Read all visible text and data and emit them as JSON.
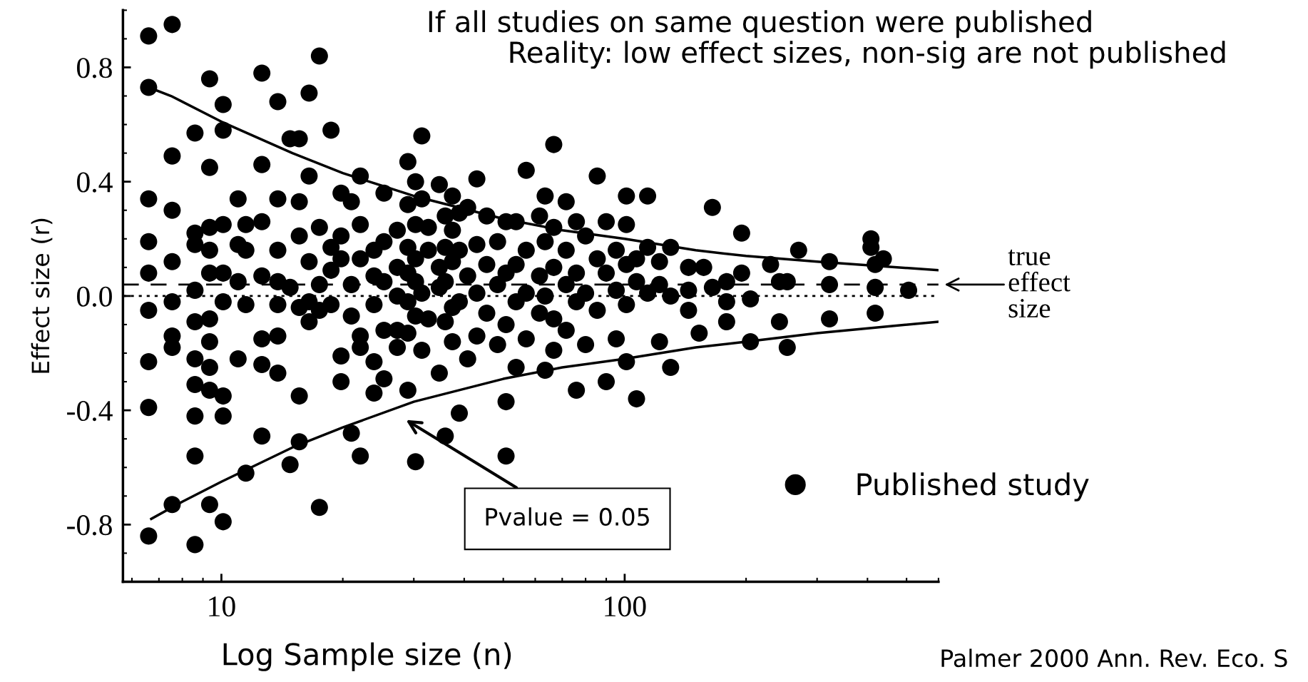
{
  "chart_data": {
    "type": "scatter",
    "title": "If all studies on same question were published",
    "subtitle": "Reality: low effect sizes, non-sig are not published",
    "xlabel": "Log Sample size (n)",
    "ylabel": "Effect size (r)",
    "log": "x",
    "xlim": [
      5.7,
      600
    ],
    "ylim": [
      -1.0,
      1.0
    ],
    "xticks": [
      10,
      100
    ],
    "yticks": [
      {
        "value": -0.8,
        "label": "-0.8"
      },
      {
        "value": -0.4,
        "label": "-0.4"
      },
      {
        "value": 0.0,
        "label": "0.0"
      },
      {
        "value": 0.4,
        "label": "0.4"
      },
      {
        "value": 0.8,
        "label": "0.8"
      }
    ],
    "grid": false,
    "legend": "lower right",
    "marker": "circle",
    "series": [
      {
        "name": "Published study",
        "color": "#000000",
        "x": [
          6.6,
          6.6,
          6.6,
          6.6,
          6.6,
          6.6,
          6.6,
          6.6,
          6.6,
          7.55,
          7.55,
          7.55,
          7.55,
          7.55,
          7.55,
          7.55,
          7.55,
          8.6,
          8.6,
          8.6,
          8.6,
          8.6,
          8.6,
          8.6,
          8.6,
          8.6,
          8.6,
          9.35,
          9.35,
          9.35,
          9.35,
          9.35,
          9.35,
          9.35,
          9.35,
          9.35,
          9.35,
          10.1,
          10.1,
          10.1,
          10.1,
          10.1,
          10.1,
          10.1,
          10.1,
          11.0,
          11.0,
          11.0,
          11.0,
          11.5,
          11.5,
          11.5,
          11.5,
          12.6,
          12.6,
          12.6,
          12.6,
          12.6,
          12.6,
          12.6,
          13.8,
          13.8,
          13.8,
          13.8,
          13.8,
          13.8,
          13.8,
          14.8,
          14.8,
          14.8,
          15.6,
          15.6,
          15.6,
          15.6,
          15.6,
          15.6,
          16.5,
          16.5,
          16.5,
          16.5,
          16.5,
          17.5,
          17.5,
          17.5,
          17.5,
          17.5,
          18.7,
          18.7,
          18.7,
          18.7,
          19.8,
          19.8,
          19.8,
          19.8,
          19.8,
          21.0,
          21.0,
          21.0,
          21.0,
          22.1,
          22.1,
          22.1,
          22.1,
          22.1,
          22.1,
          23.9,
          23.9,
          23.9,
          23.9,
          23.9,
          25.3,
          25.3,
          25.3,
          25.3,
          25.3,
          27.3,
          27.3,
          27.3,
          27.3,
          27.3,
          29.0,
          29.0,
          29.0,
          29.0,
          29.0,
          29.0,
          29.0,
          30.3,
          30.3,
          30.3,
          30.3,
          30.3,
          30.3,
          31.4,
          31.4,
          31.4,
          31.4,
          32.6,
          32.6,
          32.6,
          34.7,
          34.7,
          34.7,
          34.7,
          35.9,
          35.9,
          35.9,
          35.9,
          35.9,
          37.4,
          37.4,
          37.4,
          37.4,
          37.4,
          38.9,
          38.9,
          38.9,
          38.9,
          40.8,
          40.8,
          40.8,
          43.0,
          43.0,
          43.0,
          43.0,
          45.5,
          45.5,
          45.5,
          48.4,
          48.4,
          48.4,
          50.8,
          50.8,
          50.8,
          50.8,
          50.8,
          53.8,
          53.8,
          53.8,
          53.8,
          57.0,
          57.0,
          57.0,
          57.0,
          61.5,
          61.5,
          61.5,
          63.5,
          63.5,
          63.5,
          63.5,
          66.7,
          66.7,
          66.7,
          66.7,
          66.7,
          71.6,
          71.6,
          71.6,
          71.6,
          75.9,
          75.9,
          75.9,
          75.9,
          80.0,
          80.0,
          80.0,
          85.5,
          85.5,
          85.5,
          90.0,
          90.0,
          90.0,
          95.3,
          95.3,
          95.3,
          101,
          101,
          101,
          101,
          101,
          107,
          107,
          107,
          114,
          114,
          114,
          122,
          122,
          122,
          130,
          130,
          130,
          144,
          144,
          144,
          153,
          157,
          165,
          165,
          179,
          179,
          179,
          195,
          195,
          205,
          205,
          230,
          242,
          242,
          253,
          253,
          270,
          322,
          322,
          322,
          408,
          408,
          418,
          418,
          418,
          438,
          506
        ],
        "values": [
          0.91,
          0.73,
          0.34,
          0.19,
          0.08,
          -0.05,
          -0.23,
          -0.39,
          -0.84,
          0.95,
          0.49,
          0.3,
          0.12,
          -0.02,
          -0.14,
          -0.18,
          -0.73,
          0.57,
          0.22,
          0.18,
          0.02,
          -0.09,
          -0.22,
          -0.31,
          -0.42,
          -0.56,
          -0.87,
          0.76,
          0.45,
          0.24,
          0.16,
          0.08,
          -0.08,
          -0.16,
          -0.25,
          -0.33,
          -0.73,
          0.67,
          0.58,
          0.25,
          0.08,
          -0.02,
          -0.35,
          -0.42,
          -0.79,
          0.34,
          0.18,
          0.05,
          -0.22,
          0.25,
          0.16,
          -0.03,
          -0.62,
          0.78,
          0.46,
          0.26,
          0.07,
          -0.15,
          -0.24,
          -0.49,
          0.68,
          0.34,
          0.16,
          0.05,
          -0.03,
          -0.14,
          -0.27,
          0.55,
          0.03,
          -0.59,
          0.55,
          0.33,
          0.21,
          -0.04,
          -0.35,
          -0.51,
          0.71,
          0.42,
          0.12,
          -0.02,
          -0.09,
          0.84,
          0.24,
          0.04,
          -0.05,
          -0.74,
          0.58,
          0.17,
          0.09,
          -0.03,
          0.36,
          0.21,
          0.13,
          -0.21,
          -0.3,
          0.33,
          0.04,
          -0.07,
          -0.48,
          0.42,
          0.25,
          0.13,
          -0.14,
          -0.18,
          -0.56,
          0.16,
          0.07,
          -0.03,
          -0.23,
          -0.34,
          0.36,
          0.19,
          0.05,
          -0.12,
          -0.29,
          0.23,
          0.1,
          0.0,
          -0.12,
          -0.18,
          0.47,
          0.32,
          0.17,
          0.08,
          -0.02,
          -0.13,
          -0.33,
          0.4,
          0.25,
          0.13,
          0.05,
          -0.07,
          -0.58,
          0.56,
          0.34,
          0.01,
          -0.19,
          0.24,
          0.16,
          -0.08,
          0.39,
          0.1,
          0.03,
          -0.27,
          0.28,
          0.17,
          0.05,
          -0.09,
          -0.49,
          0.35,
          0.23,
          0.12,
          -0.04,
          -0.16,
          0.29,
          0.16,
          -0.02,
          -0.41,
          0.31,
          0.07,
          -0.22,
          0.41,
          0.18,
          0.01,
          -0.14,
          0.28,
          0.11,
          -0.06,
          0.19,
          0.04,
          -0.17,
          0.26,
          0.08,
          -0.1,
          -0.37,
          -0.56,
          0.26,
          0.11,
          -0.02,
          -0.25,
          0.44,
          0.16,
          0.01,
          -0.15,
          0.28,
          0.07,
          -0.06,
          0.35,
          0.19,
          0.0,
          -0.26,
          0.53,
          0.24,
          0.1,
          -0.08,
          -0.19,
          0.33,
          0.16,
          0.04,
          -0.12,
          0.26,
          0.08,
          -0.02,
          -0.33,
          0.21,
          0.01,
          -0.17,
          0.42,
          0.13,
          -0.05,
          0.26,
          0.08,
          -0.3,
          0.16,
          0.02,
          -0.15,
          0.35,
          0.25,
          0.11,
          -0.03,
          -0.23,
          0.13,
          0.05,
          -0.36,
          0.35,
          0.17,
          0.01,
          0.12,
          0.04,
          -0.16,
          0.17,
          0.0,
          -0.25,
          0.1,
          0.02,
          -0.05,
          -0.13,
          0.1,
          0.31,
          0.03,
          0.05,
          -0.02,
          -0.09,
          0.22,
          0.08,
          -0.16,
          -0.01,
          0.11,
          0.05,
          -0.09,
          -0.18,
          0.05,
          0.16,
          0.12,
          0.04,
          -0.08,
          0.2,
          0.17,
          0.11,
          0.03,
          -0.06,
          0.13,
          0.02
        ]
      },
      {
        "type": "line",
        "color": "#000000",
        "marker": "none",
        "x": [
          6.6,
          7.5,
          10,
          15,
          20,
          30,
          50,
          70,
          100,
          150,
          200,
          300,
          600
        ],
        "values": [
          0.73,
          0.7,
          0.61,
          0.5,
          0.43,
          0.35,
          0.27,
          0.23,
          0.2,
          0.16,
          0.14,
          0.12,
          0.09
        ]
      },
      {
        "type": "line",
        "color": "#000000",
        "marker": "none",
        "x": [
          6.7,
          8,
          10,
          15,
          20,
          30,
          50,
          70,
          100,
          150,
          200,
          300,
          600
        ],
        "values": [
          -0.78,
          -0.72,
          -0.65,
          -0.53,
          -0.46,
          -0.37,
          -0.29,
          -0.25,
          -0.22,
          -0.18,
          -0.16,
          -0.13,
          -0.09
        ]
      }
    ],
    "ref_lines": [
      {
        "axis": "y",
        "value": 0.04,
        "label": "true\neffect\nsize",
        "color": "#000000",
        "line_style": "dashed"
      },
      {
        "axis": "y",
        "value": 0.0,
        "color": "#000000",
        "line_style": "dotted"
      }
    ],
    "annotations": [
      "Pvalue = 0.05",
      "Palmer 2000 Ann. Rev. Eco. S"
    ]
  }
}
